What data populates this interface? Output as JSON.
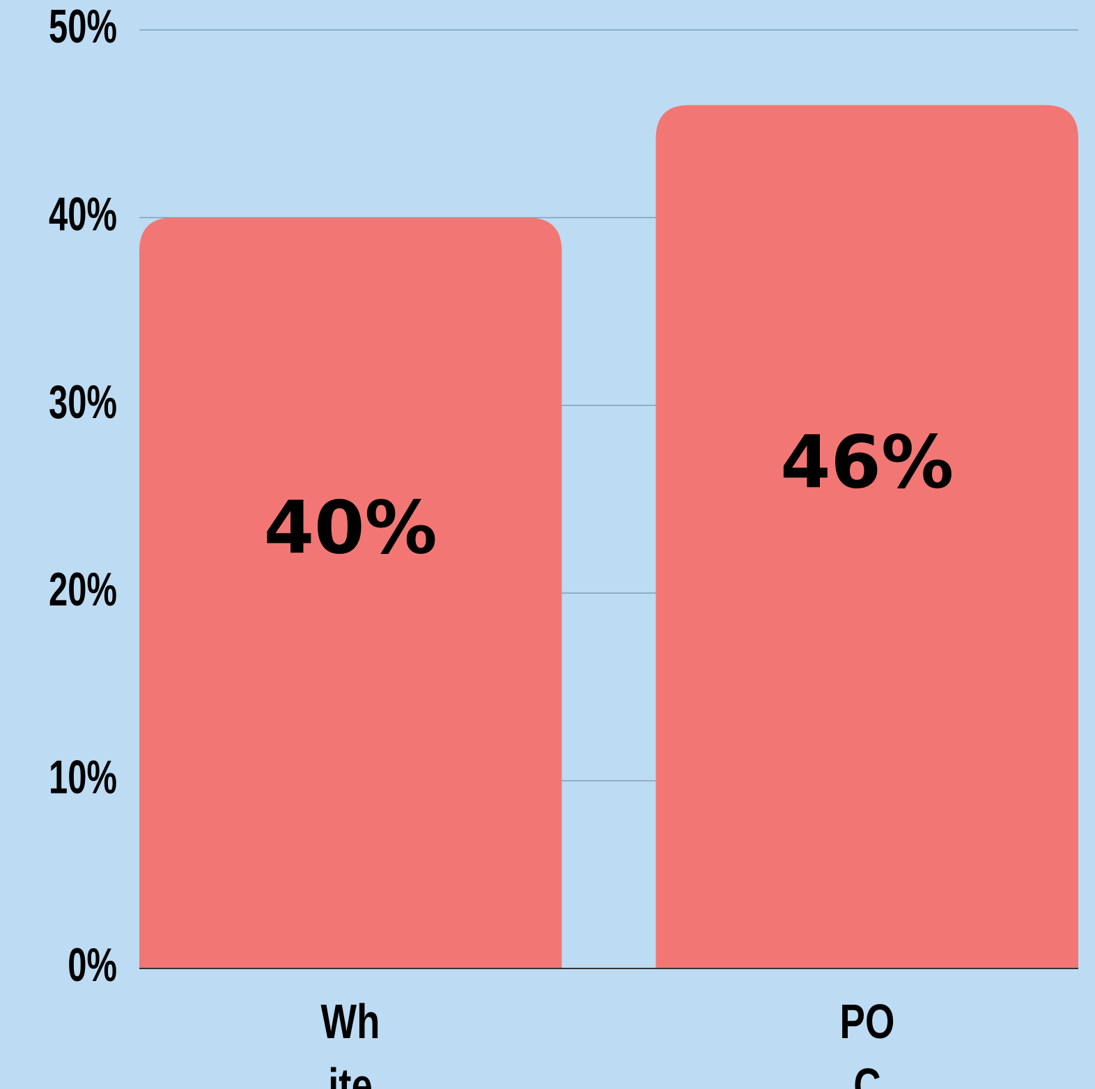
{
  "chart_data": {
    "type": "bar",
    "categories": [
      "White",
      "POC"
    ],
    "values": [
      40,
      46
    ],
    "value_labels": [
      "40%",
      "46%"
    ],
    "color": "#f27774",
    "ylim": [
      0,
      50
    ],
    "yticks": [
      {
        "value": 0,
        "label": "0%"
      },
      {
        "value": 10,
        "label": "10%"
      },
      {
        "value": 20,
        "label": "20%"
      },
      {
        "value": 30,
        "label": "30%"
      },
      {
        "value": 40,
        "label": "40%"
      },
      {
        "value": 50,
        "label": "50%"
      }
    ],
    "grid": true
  }
}
